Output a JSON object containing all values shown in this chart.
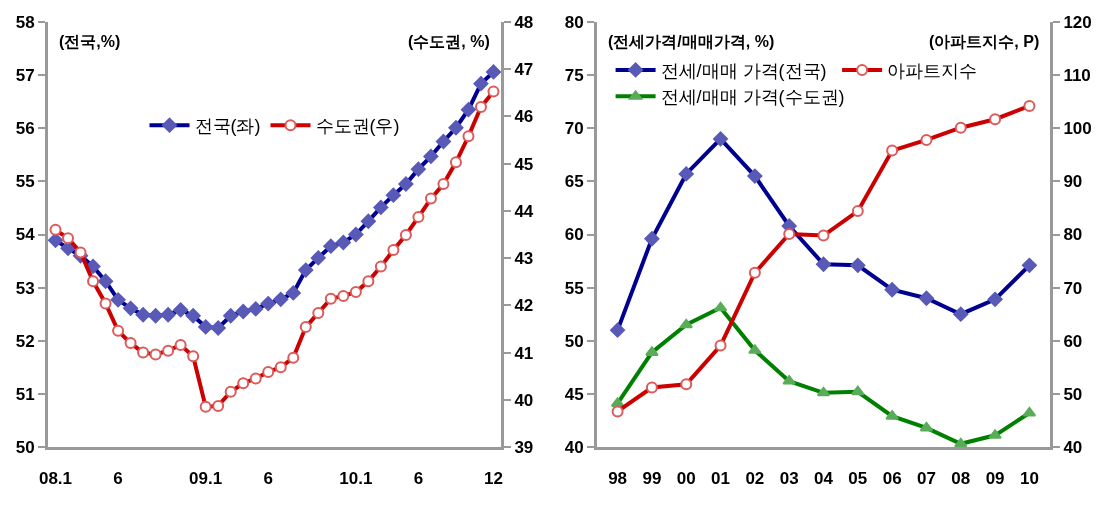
{
  "chart_data": [
    {
      "type": "line",
      "ylabel": "(전국,%)",
      "y2label": "(수도권, %)",
      "categories": [
        "08.1",
        null,
        null,
        null,
        null,
        "6",
        null,
        null,
        null,
        null,
        null,
        null,
        "09.1",
        null,
        null,
        null,
        null,
        "6",
        null,
        null,
        null,
        null,
        null,
        null,
        "10.1",
        null,
        null,
        null,
        null,
        "6",
        null,
        null,
        null,
        null,
        null,
        "12"
      ],
      "series": [
        {
          "name": "전국(좌)",
          "color": "#000090",
          "marker": "diamond",
          "values": [
            53.89,
            53.74,
            53.6,
            53.4,
            53.12,
            52.77,
            52.61,
            52.49,
            52.47,
            52.49,
            52.58,
            52.47,
            52.26,
            52.24,
            52.47,
            52.55,
            52.6,
            52.7,
            52.78,
            52.9,
            53.33,
            53.56,
            53.78,
            53.85,
            54.0,
            54.25,
            54.51,
            54.74,
            54.95,
            55.23,
            55.47,
            55.75,
            56.01,
            56.35,
            56.84,
            57.06
          ]
        },
        {
          "name": "수도권(우)",
          "color": "#cc0000",
          "marker": "circle",
          "axis": "y2",
          "values": [
            43.6,
            43.42,
            43.12,
            42.51,
            42.04,
            41.46,
            41.2,
            41.0,
            40.96,
            41.04,
            41.16,
            40.92,
            39.85,
            39.87,
            40.17,
            40.35,
            40.45,
            40.59,
            40.69,
            40.89,
            41.54,
            41.84,
            42.14,
            42.2,
            42.28,
            42.51,
            42.82,
            43.17,
            43.49,
            43.87,
            44.26,
            44.57,
            45.03,
            45.58,
            46.2,
            46.53
          ]
        }
      ],
      "ylim": [
        50,
        58
      ],
      "yticks": [
        50,
        51,
        52,
        53,
        54,
        55,
        56,
        57,
        58
      ],
      "y2lim": [
        39,
        48
      ],
      "y2ticks": [
        39,
        40,
        41,
        42,
        43,
        44,
        45,
        46,
        47,
        48
      ],
      "grid": false,
      "legend": "top",
      "line_style": "solid"
    },
    {
      "type": "line",
      "ylabel": "(전세가격/매매가격, %)",
      "y2label": "(아파트지수, P)",
      "categories": [
        "98",
        "99",
        "00",
        "01",
        "02",
        "03",
        "04",
        "05",
        "06",
        "07",
        "08",
        "09",
        "10"
      ],
      "series": [
        {
          "name": "전세/매매 가격(전국)",
          "color": "#000090",
          "marker": "diamond",
          "values": [
            51.0,
            59.6,
            65.7,
            69.0,
            65.5,
            60.8,
            57.2,
            57.1,
            54.8,
            54.0,
            52.5,
            53.9,
            57.1
          ]
        },
        {
          "name": "아파트지수",
          "color": "#cc0000",
          "marker": "circle",
          "axis": "y2",
          "values": [
            46.7,
            51.2,
            51.8,
            59.1,
            72.8,
            80.1,
            79.8,
            84.4,
            95.8,
            97.8,
            100.1,
            101.7,
            104.2
          ]
        },
        {
          "name": "전세/매매 가격(수도권)",
          "color": "#008000",
          "marker": "triangle",
          "values": [
            44.1,
            48.9,
            51.5,
            53.1,
            49.1,
            46.2,
            45.1,
            45.2,
            42.9,
            41.8,
            40.3,
            41.1,
            43.2
          ]
        }
      ],
      "ylim": [
        40,
        80
      ],
      "yticks": [
        40,
        45,
        50,
        55,
        60,
        65,
        70,
        75,
        80
      ],
      "y2lim": [
        40,
        120
      ],
      "y2ticks": [
        40,
        50,
        60,
        70,
        80,
        90,
        100,
        110,
        120
      ],
      "grid": false,
      "legend": "top left",
      "line_style": "solid"
    }
  ]
}
